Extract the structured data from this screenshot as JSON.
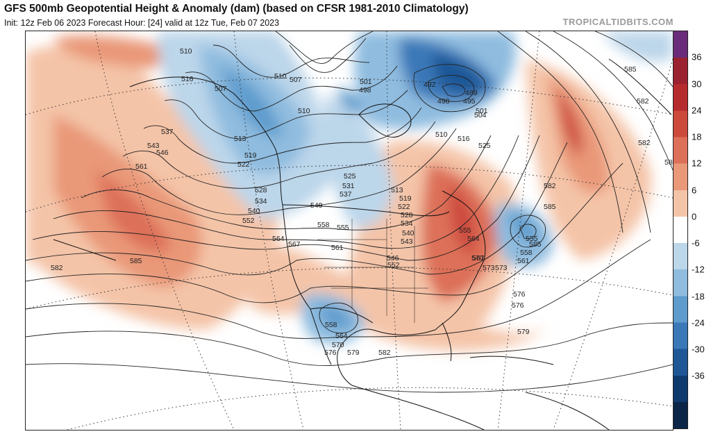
{
  "header": {
    "title": "GFS 500mb Geopotential Height & Anomaly (dam) (based on CFSR 1981-2010 Climatology)",
    "subtitle": "Init: 12z Feb 06 2023   Forecast Hour: [24]   valid at 12z Tue, Feb 07 2023",
    "site": "TROPICALTIDBITS.COM"
  },
  "colorbar": {
    "labels": [
      "36",
      "30",
      "24",
      "18",
      "12",
      "6",
      "0",
      "-6",
      "-12",
      "-18",
      "-24",
      "-30",
      "-36"
    ],
    "colors": [
      "#6a2c7a",
      "#9b2230",
      "#b52b2e",
      "#cc4a3c",
      "#dd7058",
      "#e99878",
      "#f4c4a8",
      "#ffffff",
      "#bcd6ea",
      "#8fbcdf",
      "#5f9ccd",
      "#3a78b8",
      "#1f5796",
      "#0f3a6e",
      "#0a2548"
    ]
  },
  "contour_labels": [
    "510",
    "516",
    "507",
    "510",
    "507",
    "510",
    "513",
    "519",
    "522",
    "528",
    "534",
    "540",
    "552",
    "537",
    "543",
    "546",
    "561",
    "585",
    "582",
    "501",
    "498",
    "492",
    "489",
    "495",
    "498",
    "501",
    "504",
    "510",
    "516",
    "525",
    "525",
    "531",
    "537",
    "549",
    "558",
    "555",
    "561",
    "564",
    "567",
    "513",
    "519",
    "522",
    "528",
    "534",
    "540",
    "543",
    "546",
    "552",
    "555",
    "564",
    "567",
    "573",
    "576",
    "585",
    "558",
    "561",
    "570",
    "573",
    "576",
    "579",
    "582",
    "585",
    "555",
    "558",
    "564",
    "570",
    "576",
    "579",
    "582",
    "585",
    "582",
    "582",
    "585"
  ]
}
